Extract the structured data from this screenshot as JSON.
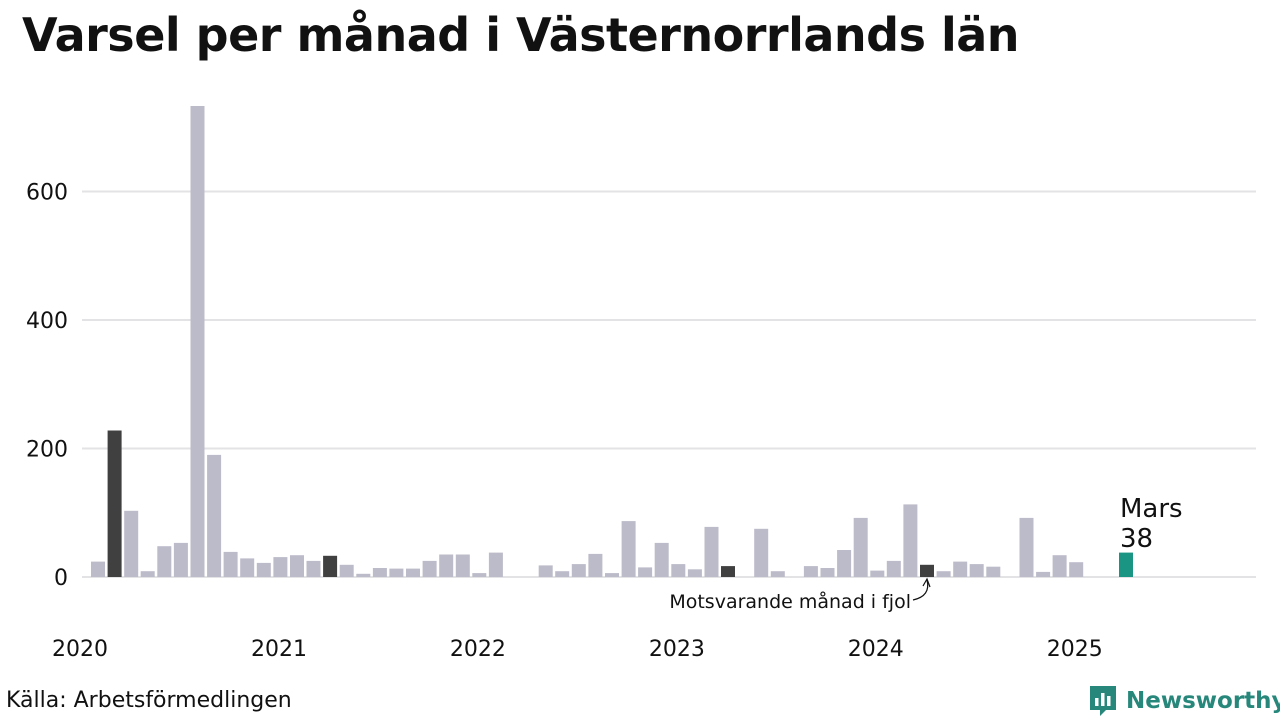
{
  "title": "Varsel per månad i Västernorrlands län",
  "source": "Källa: Arbetsförmedlingen",
  "brand": {
    "name": "Newsworthy",
    "icon": "newsworthy-logo-icon"
  },
  "chart_data": {
    "type": "bar",
    "title": "Varsel per månad i Västernorrlands län",
    "xlabel": "",
    "ylabel": "",
    "ylim": [
      0,
      740
    ],
    "y_ticks": [
      0,
      200,
      400,
      600
    ],
    "x_tick_labels": [
      "2020",
      "2021",
      "2022",
      "2023",
      "2024",
      "2025"
    ],
    "grid": true,
    "colors": {
      "default": "#bcbbc9",
      "same_month": "#404040",
      "current": "#1a9584"
    },
    "highlight": {
      "label": "Mars",
      "value": 38
    },
    "annotation": "Motsvarande månad i fjol",
    "months": [
      "2020-01",
      "2020-02",
      "2020-03",
      "2020-04",
      "2020-05",
      "2020-06",
      "2020-07",
      "2020-08",
      "2020-09",
      "2020-10",
      "2020-11",
      "2020-12",
      "2021-01",
      "2021-02",
      "2021-03",
      "2021-04",
      "2021-05",
      "2021-06",
      "2021-07",
      "2021-08",
      "2021-09",
      "2021-10",
      "2021-11",
      "2021-12",
      "2022-01",
      "2022-02",
      "2022-03",
      "2022-04",
      "2022-05",
      "2022-06",
      "2022-07",
      "2022-08",
      "2022-09",
      "2022-10",
      "2022-11",
      "2022-12",
      "2023-01",
      "2023-02",
      "2023-03",
      "2023-04",
      "2023-05",
      "2023-06",
      "2023-07",
      "2023-08",
      "2023-09",
      "2023-10",
      "2023-11",
      "2023-12",
      "2024-01",
      "2024-02",
      "2024-03",
      "2024-04",
      "2024-05",
      "2024-06",
      "2024-07",
      "2024-08",
      "2024-09",
      "2024-10",
      "2024-11",
      "2024-12",
      "2025-01",
      "2025-02",
      "2025-03"
    ],
    "values": [
      24,
      228,
      103,
      9,
      48,
      53,
      733,
      190,
      39,
      29,
      22,
      31,
      34,
      25,
      33,
      19,
      5,
      14,
      13,
      13,
      25,
      35,
      35,
      6,
      38,
      0,
      0,
      18,
      9,
      20,
      36,
      6,
      87,
      15,
      53,
      20,
      12,
      78,
      17,
      0,
      75,
      9,
      0,
      17,
      14,
      42,
      92,
      10,
      25,
      113,
      19,
      9,
      24,
      20,
      16,
      0,
      92,
      8,
      34,
      23,
      0,
      0,
      38
    ],
    "kinds": [
      "d",
      "s",
      "d",
      "d",
      "d",
      "d",
      "d",
      "d",
      "d",
      "d",
      "d",
      "d",
      "d",
      "d",
      "s",
      "d",
      "d",
      "d",
      "d",
      "d",
      "d",
      "d",
      "d",
      "d",
      "d",
      "d",
      "d",
      "d",
      "d",
      "d",
      "d",
      "d",
      "d",
      "d",
      "d",
      "d",
      "d",
      "d",
      "s",
      "d",
      "d",
      "d",
      "d",
      "d",
      "d",
      "d",
      "d",
      "d",
      "d",
      "d",
      "s",
      "d",
      "d",
      "d",
      "d",
      "d",
      "d",
      "d",
      "d",
      "d",
      "d",
      "d",
      "c"
    ]
  }
}
